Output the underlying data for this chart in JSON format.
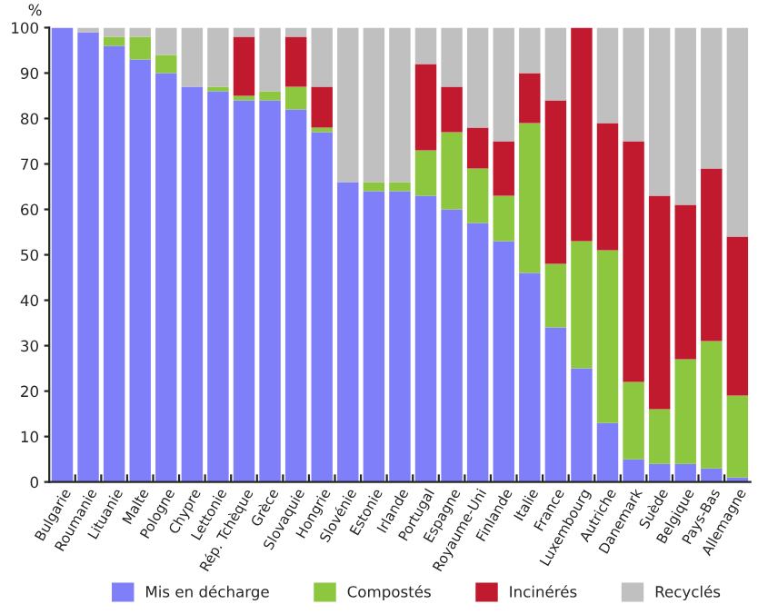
{
  "chart_data": {
    "type": "bar",
    "stacked": true,
    "ylabel": "%",
    "categories": [
      "Bulgarie",
      "Roumanie",
      "Lituanie",
      "Malte",
      "Pologne",
      "Chypre",
      "Lettonie",
      "Rép. Tchèque",
      "Grèce",
      "Slovaquie",
      "Hongrie",
      "Slovénie",
      "Estonie",
      "Irlande",
      "Portugal",
      "Espagne",
      "Royaume-Uni",
      "Finlande",
      "Italie",
      "France",
      "Luxembourg",
      "Autriche",
      "Danemark",
      "Suède",
      "Belgique",
      "Pays-Bas",
      "Allemagne"
    ],
    "series": [
      {
        "name": "Mis en décharge",
        "color": "#7f7ffa",
        "values": [
          100,
          99,
          96,
          93,
          90,
          87,
          86,
          84,
          84,
          82,
          77,
          66,
          64,
          64,
          63,
          60,
          57,
          53,
          46,
          34,
          25,
          13,
          5,
          4,
          4,
          3,
          1
        ]
      },
      {
        "name": "Compostés",
        "color": "#8dc63f",
        "values": [
          0,
          0,
          2,
          5,
          4,
          0,
          1,
          1,
          2,
          5,
          1,
          0,
          2,
          2,
          10,
          17,
          12,
          10,
          33,
          14,
          28,
          38,
          17,
          12,
          23,
          28,
          18
        ]
      },
      {
        "name": "Incinérés",
        "color": "#c1192e",
        "values": [
          0,
          0,
          0,
          0,
          0,
          0,
          0,
          13,
          0,
          11,
          9,
          0,
          0,
          0,
          19,
          10,
          9,
          12,
          11,
          36,
          47,
          28,
          53,
          47,
          34,
          38,
          35
        ]
      },
      {
        "name": "Recyclés",
        "color": "#c0c0c0",
        "values": [
          0,
          1,
          2,
          2,
          6,
          13,
          13,
          2,
          14,
          2,
          13,
          34,
          34,
          34,
          8,
          13,
          22,
          25,
          10,
          16,
          0,
          21,
          25,
          37,
          39,
          31,
          46
        ]
      }
    ],
    "ylim": [
      0,
      100
    ],
    "yticks": [
      0,
      10,
      20,
      30,
      40,
      50,
      60,
      70,
      80,
      90,
      100
    ],
    "grid": false,
    "legend": "bottom"
  }
}
